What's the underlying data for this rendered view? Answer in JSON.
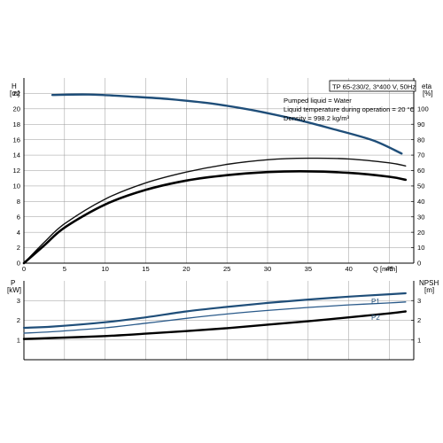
{
  "chart_data": [
    {
      "type": "line",
      "info_box": {
        "model": "TP 65-230/2, 3*400 V, 50Hz",
        "liquid": "Pumped liquid = Water",
        "temperature": "Liquid temperature during operation = 20 °C",
        "density": "Density = 998.2 kg/m³"
      },
      "xlabel": "Q [m³/h]",
      "xlim": [
        0,
        48
      ],
      "x_ticks": [
        0,
        5,
        10,
        15,
        20,
        25,
        30,
        35,
        40,
        45
      ],
      "left_axis": {
        "label_line1": "H",
        "label_line2": "[m]",
        "ylim": [
          0,
          24
        ],
        "ticks": [
          0,
          2,
          4,
          6,
          8,
          10,
          12,
          14,
          16,
          18,
          20,
          22
        ]
      },
      "right_axis": {
        "label_line1": "eta",
        "label_line2": "[%]",
        "ylim": [
          0,
          120
        ],
        "ticks": [
          0,
          10,
          20,
          30,
          40,
          50,
          60,
          70,
          80,
          90,
          100
        ]
      },
      "series": [
        {
          "axis": "left",
          "color": "#1f4e79",
          "width": 2.4,
          "x": [
            3.5,
            8,
            13,
            18,
            23,
            28,
            33,
            38,
            43,
            46.5
          ],
          "values": [
            21.8,
            21.85,
            21.6,
            21.25,
            20.7,
            19.85,
            18.75,
            17.4,
            15.9,
            14.2
          ]
        },
        {
          "axis": "left",
          "color": "#111111",
          "width": 1.4,
          "x": [
            0,
            2.5,
            5,
            10,
            15,
            20,
            25,
            30,
            35,
            40,
            45,
            47
          ],
          "values": [
            0,
            2.7,
            5.1,
            8.3,
            10.4,
            11.8,
            12.8,
            13.4,
            13.6,
            13.5,
            13.0,
            12.6
          ]
        },
        {
          "axis": "left",
          "color": "#000000",
          "width": 2.6,
          "x": [
            0,
            2.5,
            5,
            10,
            15,
            20,
            25,
            30,
            35,
            40,
            45,
            47
          ],
          "values": [
            0,
            2.3,
            4.6,
            7.6,
            9.5,
            10.7,
            11.4,
            11.8,
            11.9,
            11.7,
            11.2,
            10.8
          ]
        }
      ]
    },
    {
      "type": "line",
      "xlim": [
        0,
        48
      ],
      "x_ticks": [
        0,
        5,
        10,
        15,
        20,
        25,
        30,
        35,
        40,
        45
      ],
      "left_axis": {
        "label_line1": "P",
        "label_line2": "[kW]",
        "ylim": [
          0,
          4
        ],
        "ticks": [
          1,
          2,
          3
        ]
      },
      "right_axis": {
        "label_line1": "NPSH",
        "label_line2": "[m]",
        "ylim": [
          0,
          4
        ],
        "ticks": [
          1,
          2,
          3
        ]
      },
      "series": [
        {
          "name": "P1",
          "axis": "left",
          "color": "#1f4e79",
          "width": 2.2,
          "x": [
            0,
            3.5,
            10,
            15,
            20,
            25,
            30,
            35,
            40,
            45,
            47
          ],
          "values": [
            1.62,
            1.68,
            1.9,
            2.15,
            2.45,
            2.68,
            2.88,
            3.05,
            3.2,
            3.32,
            3.37
          ]
        },
        {
          "name": "P2",
          "axis": "left",
          "color": "#2a5a8a",
          "width": 1.3,
          "x": [
            0,
            3.5,
            10,
            15,
            20,
            25,
            30,
            35,
            40,
            45,
            47
          ],
          "values": [
            1.35,
            1.42,
            1.62,
            1.85,
            2.1,
            2.32,
            2.5,
            2.65,
            2.78,
            2.88,
            2.93
          ]
        },
        {
          "axis": "right",
          "color": "#000000",
          "width": 2.4,
          "x": [
            0,
            3.5,
            10,
            15,
            20,
            25,
            30,
            35,
            40,
            45,
            47
          ],
          "values": [
            1.05,
            1.1,
            1.2,
            1.32,
            1.45,
            1.6,
            1.78,
            1.95,
            2.15,
            2.35,
            2.45
          ]
        }
      ]
    }
  ]
}
